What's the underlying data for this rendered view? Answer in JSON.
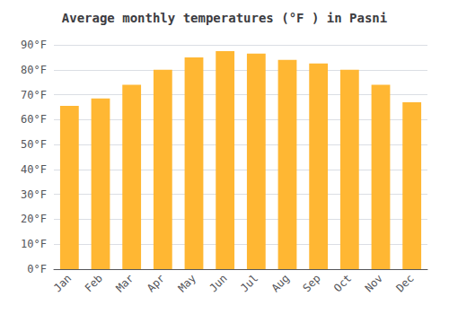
{
  "chart_data": {
    "type": "bar",
    "title": "Average monthly temperatures (°F ) in Pasni",
    "categories": [
      "Jan",
      "Feb",
      "Mar",
      "Apr",
      "May",
      "Jun",
      "Jul",
      "Aug",
      "Sep",
      "Oct",
      "Nov",
      "Dec"
    ],
    "values": [
      65.5,
      68.5,
      74,
      80,
      85,
      87.5,
      86.5,
      84,
      82.5,
      80,
      74,
      67
    ],
    "color": "#FFB733",
    "ylim": [
      0,
      90
    ],
    "yticks": [
      {
        "value": 0,
        "label": "0°F"
      },
      {
        "value": 10,
        "label": "10°F"
      },
      {
        "value": 20,
        "label": "20°F"
      },
      {
        "value": 30,
        "label": "30°F"
      },
      {
        "value": 40,
        "label": "40°F"
      },
      {
        "value": 50,
        "label": "50°F"
      },
      {
        "value": 60,
        "label": "60°F"
      },
      {
        "value": 70,
        "label": "70°F"
      },
      {
        "value": 80,
        "label": "80°F"
      },
      {
        "value": 90,
        "label": "90°F"
      }
    ],
    "grid": true
  }
}
